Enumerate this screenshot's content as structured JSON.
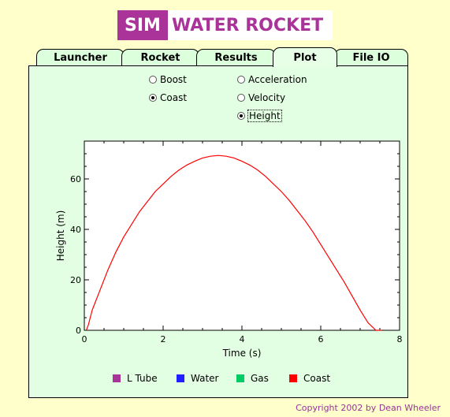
{
  "logo": {
    "sim": "SIM",
    "rest": "WATER ROCKET"
  },
  "tabs": [
    {
      "label": "Launcher",
      "active": false
    },
    {
      "label": "Rocket",
      "active": false
    },
    {
      "label": "Results",
      "active": false
    },
    {
      "label": "Plot",
      "active": true
    },
    {
      "label": "File IO",
      "active": false
    }
  ],
  "radios": {
    "boost": {
      "label": "Boost",
      "checked": false
    },
    "coast": {
      "label": "Coast",
      "checked": true
    },
    "acceleration": {
      "label": "Acceleration",
      "checked": false
    },
    "velocity": {
      "label": "Velocity",
      "checked": false
    },
    "height": {
      "label": "Height",
      "checked": true
    }
  },
  "chart_data": {
    "type": "line",
    "xlabel": "Time (s)",
    "ylabel": "Height (m)",
    "xlim": [
      0,
      8
    ],
    "ylim": [
      0,
      75
    ],
    "xticks": [
      0,
      2,
      4,
      6,
      8
    ],
    "yticks": [
      0,
      20,
      40,
      60
    ],
    "grid": false,
    "series": [
      {
        "color": "#ff0000",
        "x": [
          0.05,
          0.1,
          0.2,
          0.4,
          0.6,
          0.8,
          1.0,
          1.2,
          1.4,
          1.6,
          1.8,
          2.0,
          2.2,
          2.4,
          2.6,
          2.8,
          3.0,
          3.2,
          3.4,
          3.6,
          3.8,
          4.0,
          4.2,
          4.4,
          4.6,
          4.8,
          5.0,
          5.2,
          5.4,
          5.6,
          5.8,
          6.0,
          6.2,
          6.4,
          6.6,
          6.8,
          7.0,
          7.2,
          7.4,
          7.55
        ],
        "y": [
          0,
          2,
          8,
          16,
          24,
          31,
          37,
          42,
          47,
          51,
          55,
          58,
          61,
          63.5,
          65.5,
          67,
          68.3,
          69,
          69.3,
          69,
          68.3,
          67,
          65.5,
          63.5,
          61,
          58,
          55,
          51.5,
          47.5,
          43.5,
          39,
          34,
          29,
          24,
          19,
          13.5,
          8,
          3,
          -1.5,
          -2
        ]
      }
    ]
  },
  "legend": [
    {
      "label": "L Tube",
      "color": "#aa3399"
    },
    {
      "label": "Water",
      "color": "#1f1fff"
    },
    {
      "label": "Gas",
      "color": "#00cc66"
    },
    {
      "label": "Coast",
      "color": "#ff0000"
    }
  ],
  "copyright": "Copyright 2002 by Dean Wheeler"
}
